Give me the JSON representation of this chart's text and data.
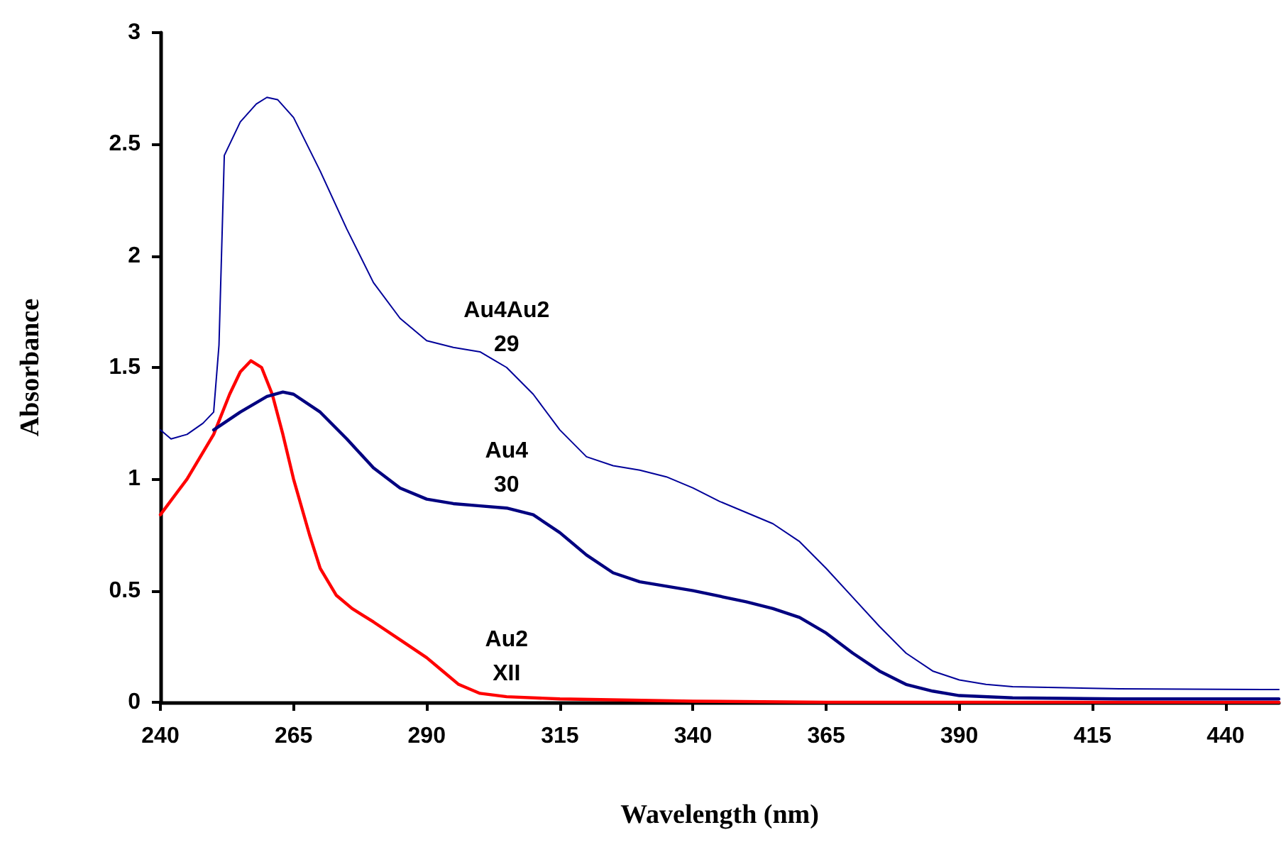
{
  "chart_data": {
    "type": "line",
    "xlabel": "Wavelength (nm)",
    "ylabel": "Absorbance",
    "xlim": [
      240,
      450
    ],
    "xticks": [
      240,
      265,
      290,
      315,
      340,
      365,
      390,
      415,
      440
    ],
    "ylim": [
      0,
      3
    ],
    "yticks": [
      0,
      0.5,
      1,
      1.5,
      2,
      2.5,
      3
    ],
    "grid": false,
    "marker": "none",
    "line_style": "solid",
    "series": [
      {
        "name": "Au4Au2\n29",
        "color": "#000099",
        "x": [
          240,
          242,
          245,
          248,
          250,
          251,
          252,
          253,
          255,
          258,
          260,
          262,
          265,
          270,
          275,
          280,
          285,
          290,
          295,
          300,
          305,
          310,
          315,
          320,
          325,
          330,
          335,
          340,
          345,
          350,
          355,
          360,
          365,
          370,
          375,
          380,
          385,
          390,
          395,
          400,
          410,
          420,
          440,
          450
        ],
        "values": [
          1.22,
          1.18,
          1.2,
          1.25,
          1.3,
          1.6,
          2.45,
          2.5,
          2.6,
          2.68,
          2.71,
          2.7,
          2.62,
          2.38,
          2.12,
          1.88,
          1.72,
          1.62,
          1.59,
          1.57,
          1.5,
          1.38,
          1.22,
          1.1,
          1.06,
          1.04,
          1.01,
          0.96,
          0.9,
          0.85,
          0.8,
          0.72,
          0.6,
          0.47,
          0.34,
          0.22,
          0.14,
          0.1,
          0.08,
          0.07,
          0.065,
          0.06,
          0.058,
          0.057
        ]
      },
      {
        "name": "Au4\n30",
        "color": "#000080",
        "x": [
          250,
          255,
          260,
          263,
          265,
          270,
          275,
          280,
          285,
          290,
          295,
          300,
          305,
          310,
          315,
          320,
          325,
          330,
          340,
          350,
          355,
          360,
          365,
          370,
          375,
          380,
          385,
          390,
          400,
          420,
          450
        ],
        "values": [
          1.22,
          1.3,
          1.37,
          1.39,
          1.38,
          1.3,
          1.18,
          1.05,
          0.96,
          0.91,
          0.89,
          0.88,
          0.87,
          0.84,
          0.76,
          0.66,
          0.58,
          0.54,
          0.5,
          0.45,
          0.42,
          0.38,
          0.31,
          0.22,
          0.14,
          0.08,
          0.05,
          0.03,
          0.02,
          0.015,
          0.015
        ]
      },
      {
        "name": "Au2\nXII",
        "color": "#ff0000",
        "x": [
          240,
          245,
          250,
          253,
          255,
          257,
          259,
          261,
          263,
          265,
          268,
          270,
          273,
          276,
          280,
          285,
          290,
          293,
          296,
          300,
          305,
          315,
          340,
          365,
          400,
          450
        ],
        "values": [
          0.84,
          1.0,
          1.2,
          1.38,
          1.48,
          1.53,
          1.5,
          1.38,
          1.2,
          1.0,
          0.75,
          0.6,
          0.48,
          0.42,
          0.36,
          0.28,
          0.2,
          0.14,
          0.08,
          0.04,
          0.025,
          0.015,
          0.005,
          0,
          0,
          0
        ]
      }
    ]
  }
}
